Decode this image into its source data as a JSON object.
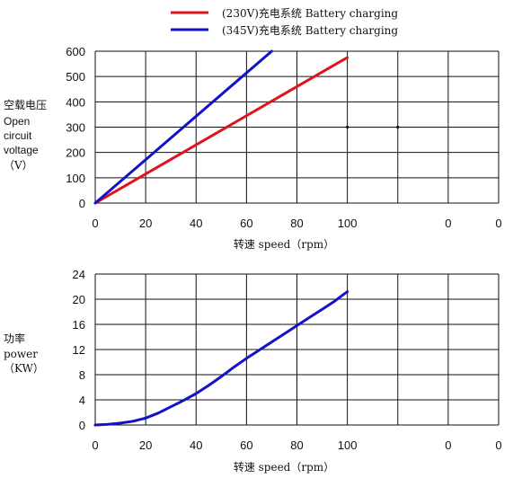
{
  "colors": {
    "series_230": "#e0151c",
    "series_345": "#1212c8",
    "power_line": "#1212c8",
    "red_tick": "#e0151c",
    "salmon_tick": "#ec8a6f",
    "grid": "#111111"
  },
  "legend": {
    "items": [
      {
        "label": "(230V)充电系统 Battery charging",
        "color": "#e0151c"
      },
      {
        "label": "(345V)充电系统 Battery charging",
        "color": "#1212c8"
      }
    ]
  },
  "chart_data": [
    {
      "type": "line",
      "ylabel_lines": [
        "空载电压",
        "Open",
        "circuit",
        "voltage",
        "（V）"
      ],
      "xlabel": "转速 speed（rpm）",
      "x_tick_labels": [
        "0",
        "20",
        "40",
        "60",
        "80",
        "100",
        "",
        "0",
        "0"
      ],
      "y_tick_labels": [
        "0",
        "100",
        "200",
        "300",
        "400",
        "500",
        "600"
      ],
      "xlim": [
        0,
        160
      ],
      "ylim": [
        0,
        600
      ],
      "grid": true,
      "legend_position": "top-center",
      "series": [
        {
          "name": "(230V)充电系统 Battery charging",
          "color": "#e0151c",
          "x": [
            0,
            100
          ],
          "y": [
            0,
            575
          ]
        },
        {
          "name": "(345V)充电系统 Battery charging",
          "color": "#1212c8",
          "x": [
            0,
            70
          ],
          "y": [
            0,
            600
          ]
        }
      ],
      "markers": [
        {
          "x": 100,
          "y": 300
        },
        {
          "x": 120,
          "y": 300
        }
      ]
    },
    {
      "type": "line",
      "ylabel_lines": [
        "功率",
        "power",
        "（KW）"
      ],
      "xlabel": "转速 speed（rpm）",
      "x_tick_labels": [
        "0",
        "20",
        "40",
        "60",
        "80",
        "100",
        "",
        "0",
        "0"
      ],
      "y_tick_labels": [
        "0",
        "4",
        "8",
        "12",
        "16",
        "20",
        "24"
      ],
      "xlim": [
        0,
        160
      ],
      "ylim": [
        0,
        24
      ],
      "grid": true,
      "series": [
        {
          "color": "#1212c8",
          "x": [
            0,
            5,
            10,
            15,
            20,
            25,
            30,
            35,
            40,
            45,
            50,
            55,
            60,
            65,
            70,
            75,
            80,
            85,
            90,
            95,
            100
          ],
          "y": [
            0,
            0.1,
            0.3,
            0.6,
            1.1,
            1.9,
            2.9,
            3.9,
            5.0,
            6.3,
            7.7,
            9.2,
            10.6,
            11.9,
            13.2,
            14.5,
            15.8,
            17.1,
            18.4,
            19.7,
            21.2
          ]
        }
      ]
    }
  ]
}
